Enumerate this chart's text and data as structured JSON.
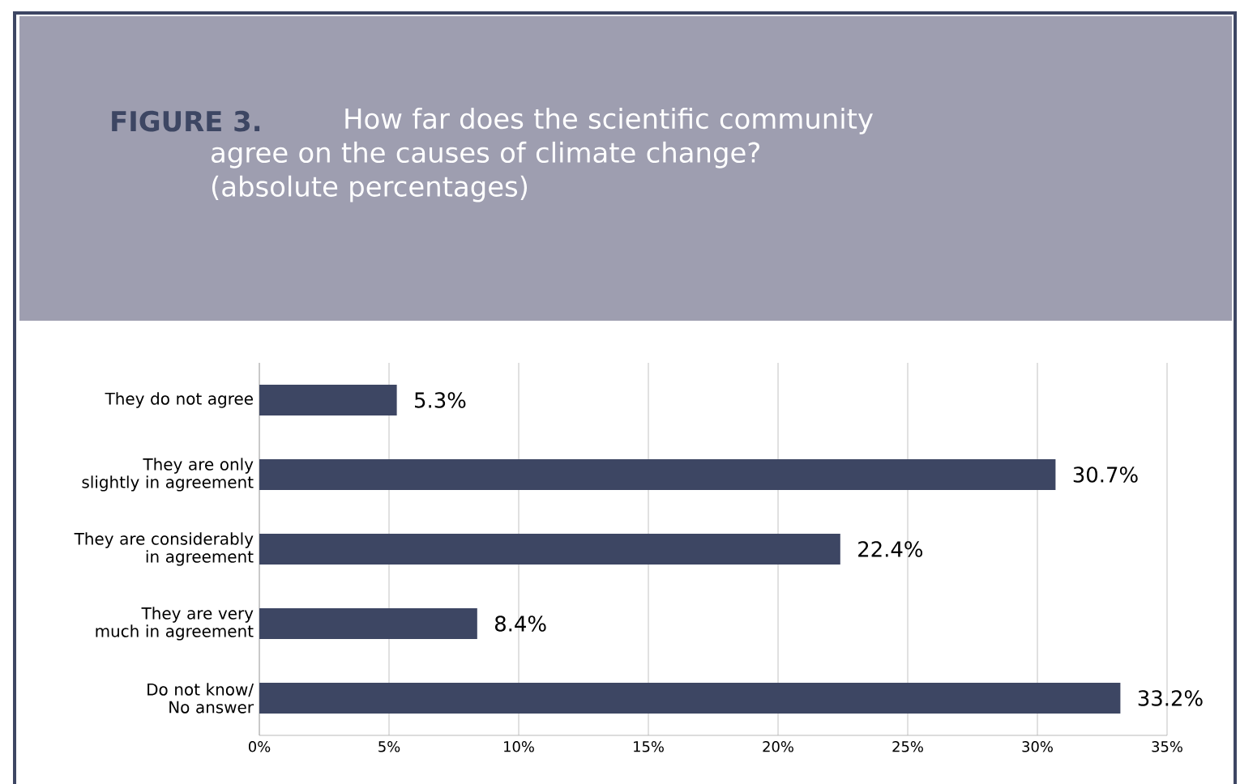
{
  "chart_data": {
    "type": "bar",
    "orientation": "horizontal",
    "title": "FIGURE 3.",
    "subtitle": "How far does the scientific community agree on the causes of climate change? (absolute percentages)",
    "categories": [
      "They do not agree",
      "They are only slightly in agreement",
      "They are considerably in agreement",
      "They are very much in agreement",
      "Do not know/ No answer"
    ],
    "values": [
      5.3,
      30.7,
      22.4,
      8.4,
      33.2
    ],
    "value_labels": [
      "5.3%",
      "30.7%",
      "22.4%",
      "8.4%",
      "33.2%"
    ],
    "color": "#3d4663",
    "xlim": [
      0,
      35
    ],
    "xticks": [
      {
        "value": 0,
        "label": "0%"
      },
      {
        "value": 5,
        "label": "5%"
      },
      {
        "value": 10,
        "label": "10%"
      },
      {
        "value": 15,
        "label": "15%"
      },
      {
        "value": 20,
        "label": "20%"
      },
      {
        "value": 25,
        "label": "25%"
      },
      {
        "value": 30,
        "label": "30%"
      },
      {
        "value": 35,
        "label": "35%"
      }
    ],
    "grid": "x",
    "legend": false
  }
}
